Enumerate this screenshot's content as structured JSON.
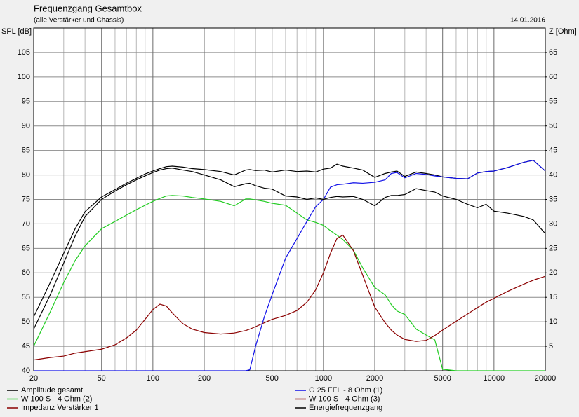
{
  "chart_data": {
    "type": "line",
    "title": "Frequenzgang Gesamtbox",
    "subtitle": "(alle Verstärker und Chassis)",
    "date": "14.01.2016",
    "ylabel": "SPL [dB]",
    "y2label": "Z [Ohm]",
    "xscale": "log",
    "grid": true,
    "legend": "bottom",
    "xlim": [
      20,
      20000
    ],
    "xticks": [
      20,
      50,
      100,
      200,
      500,
      1000,
      2000,
      5000,
      10000,
      20000
    ],
    "xminorticks": [
      30,
      40,
      60,
      70,
      80,
      90,
      300,
      400,
      600,
      700,
      800,
      900,
      3000,
      4000,
      6000,
      7000,
      8000,
      9000
    ],
    "ylim": [
      40,
      110
    ],
    "yticks": [
      40,
      45,
      50,
      55,
      60,
      65,
      70,
      75,
      80,
      85,
      90,
      95,
      100,
      105
    ],
    "y2lim": [
      0,
      70
    ],
    "y2ticks": [
      5,
      10,
      15,
      20,
      25,
      30,
      35,
      40,
      45,
      50,
      55,
      60,
      65
    ],
    "x": [
      20,
      25,
      30,
      35,
      40,
      50,
      60,
      70,
      80,
      90,
      100,
      110,
      120,
      130,
      150,
      170,
      200,
      250,
      300,
      350,
      370,
      400,
      450,
      500,
      600,
      700,
      800,
      900,
      1000,
      1100,
      1200,
      1300,
      1500,
      1700,
      2000,
      2300,
      2500,
      2700,
      3000,
      3500,
      4000,
      4500,
      5000,
      6000,
      7000,
      8000,
      9000,
      10000,
      12000,
      15000,
      17000,
      20000
    ],
    "series": [
      {
        "name": "Amplitude gesamt",
        "color": "#000000",
        "values": [
          51,
          58,
          64,
          69,
          72.5,
          75.5,
          77,
          78.3,
          79.3,
          80.2,
          80.8,
          81.3,
          81.7,
          81.8,
          81.6,
          81.3,
          81.1,
          80.7,
          80,
          81,
          81.1,
          80.9,
          81,
          80.6,
          81,
          80.7,
          80.8,
          80.6,
          81.2,
          81.4,
          82.2,
          81.8,
          81.4,
          81,
          79.5,
          80.3,
          80.6,
          80.8,
          79.7,
          80.6,
          80.3,
          80,
          79.6,
          79.3,
          79.2,
          80.4,
          80.7,
          80.8,
          81.5,
          82.6,
          83,
          80.8
        ]
      },
      {
        "name": "W 100 S - 4 Ohm (2)",
        "color": "#22cc22",
        "values": [
          45,
          52,
          58,
          62.5,
          65.5,
          69,
          70.5,
          71.8,
          72.9,
          73.8,
          74.6,
          75.2,
          75.7,
          75.8,
          75.7,
          75.4,
          75.1,
          74.6,
          73.7,
          75.1,
          75.1,
          74.9,
          74.6,
          74.2,
          73.8,
          72.2,
          70.8,
          70.3,
          69.7,
          68.6,
          67.7,
          66.8,
          64.6,
          61,
          57,
          55.5,
          53.5,
          52.2,
          51.5,
          48.5,
          47.3,
          46.3,
          40.3,
          40,
          40,
          40,
          40,
          40,
          40,
          40,
          40,
          40
        ]
      },
      {
        "name": "Impedanz Verstärker 1",
        "color": "#8b0000",
        "axis": "y2",
        "values": [
          2.2,
          2.7,
          3,
          3.6,
          3.9,
          4.4,
          5.3,
          6.7,
          8.3,
          10.5,
          12.5,
          13.6,
          13.2,
          11.8,
          9.6,
          8.5,
          7.8,
          7.5,
          7.7,
          8.2,
          8.5,
          9,
          9.8,
          10.5,
          11.3,
          12.3,
          14,
          16.5,
          20,
          24,
          27,
          27.7,
          24.5,
          19.5,
          13,
          9.8,
          8.3,
          7.3,
          6.4,
          6,
          6.2,
          7.2,
          8.3,
          10.1,
          11.6,
          12.9,
          14,
          14.8,
          16.2,
          17.7,
          18.5,
          19.3
        ]
      },
      {
        "name": "G 25 FFL - 8 Ohm (1)",
        "color": "#1010e8",
        "values": [
          40,
          40,
          40,
          40,
          40,
          40,
          40,
          40,
          40,
          40,
          40,
          40,
          40,
          40,
          40,
          40,
          40,
          40,
          40,
          40,
          40.2,
          45,
          51,
          55.5,
          63,
          67,
          70.5,
          73.5,
          75,
          77.5,
          78,
          78.1,
          78.4,
          78.3,
          78.5,
          79,
          80.3,
          80.5,
          79.4,
          80.3,
          80.1,
          79.8,
          79.6,
          79.3,
          79.2,
          80.4,
          80.7,
          80.8,
          81.5,
          82.6,
          83,
          80.8
        ]
      },
      {
        "name": "W 100 S - 4 Ohm (3)",
        "color": "#8b0000",
        "axis": "y2",
        "values": [
          null,
          null,
          null,
          null,
          null,
          null,
          null,
          null,
          null,
          null,
          null,
          null,
          null,
          null,
          null,
          null,
          null,
          null,
          null,
          null,
          null,
          null,
          null,
          null,
          null,
          null,
          null,
          null,
          null,
          null,
          null,
          null,
          null,
          null,
          null,
          null,
          null,
          null,
          null,
          null,
          null,
          null,
          null,
          null,
          null,
          null,
          null,
          null,
          null,
          null,
          null,
          null
        ]
      },
      {
        "name": "Energiefrequenzgang",
        "color": "#000000",
        "values": [
          48.5,
          55.5,
          62,
          67.5,
          71.5,
          75,
          76.7,
          78,
          79,
          79.8,
          80.5,
          81,
          81.3,
          81.4,
          81,
          80.7,
          80,
          79,
          77.6,
          78.2,
          78.3,
          77.8,
          77.3,
          77.1,
          75.7,
          75.5,
          75,
          75.3,
          75,
          75.4,
          75.6,
          75.5,
          75.6,
          75,
          73.7,
          75.4,
          75.8,
          75.8,
          76,
          77.2,
          76.8,
          76.5,
          75.7,
          75,
          74,
          73.3,
          74,
          72.6,
          72.2,
          71.5,
          70.8,
          68
        ]
      }
    ]
  }
}
